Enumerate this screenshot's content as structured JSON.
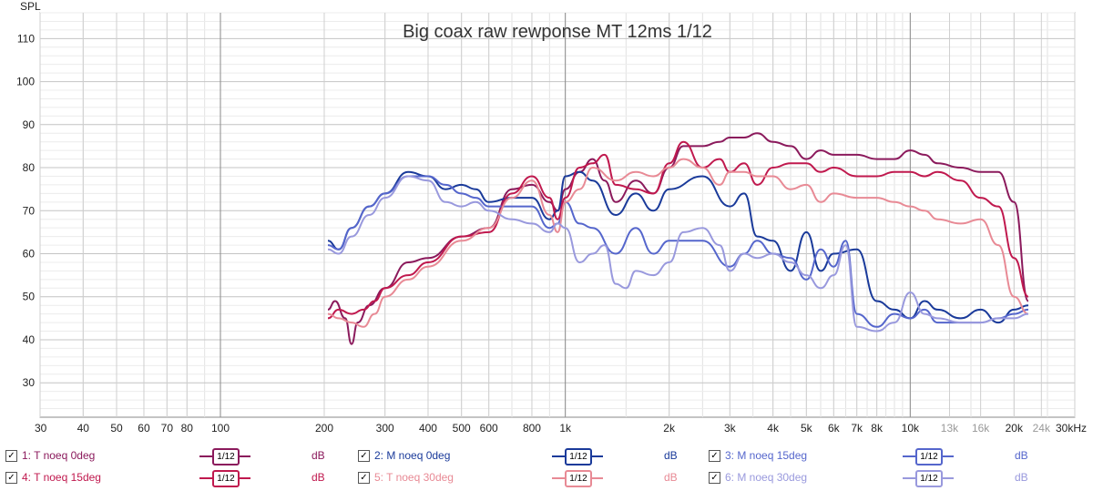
{
  "chart_data": {
    "type": "line",
    "title": "Big coax raw rewponse MT 12ms 1/12",
    "ylabel": "SPL",
    "xlabel": "",
    "x_scale": "log",
    "xlim": [
      30,
      30000
    ],
    "ylim": [
      22,
      116
    ],
    "y_ticks": [
      30,
      40,
      50,
      60,
      70,
      80,
      90,
      100,
      110
    ],
    "x_ticks": [
      {
        "v": 30,
        "label": "30",
        "minor": false
      },
      {
        "v": 40,
        "label": "40",
        "minor": false
      },
      {
        "v": 50,
        "label": "50",
        "minor": false
      },
      {
        "v": 60,
        "label": "60",
        "minor": false
      },
      {
        "v": 70,
        "label": "70",
        "minor": false
      },
      {
        "v": 80,
        "label": "80",
        "minor": false
      },
      {
        "v": 100,
        "label": "100",
        "minor": false
      },
      {
        "v": 200,
        "label": "200",
        "minor": false
      },
      {
        "v": 300,
        "label": "300",
        "minor": false
      },
      {
        "v": 400,
        "label": "400",
        "minor": false
      },
      {
        "v": 500,
        "label": "500",
        "minor": false
      },
      {
        "v": 600,
        "label": "600",
        "minor": false
      },
      {
        "v": 800,
        "label": "800",
        "minor": false
      },
      {
        "v": 1000,
        "label": "1k",
        "minor": false
      },
      {
        "v": 2000,
        "label": "2k",
        "minor": false
      },
      {
        "v": 3000,
        "label": "3k",
        "minor": false
      },
      {
        "v": 4000,
        "label": "4k",
        "minor": false
      },
      {
        "v": 5000,
        "label": "5k",
        "minor": false
      },
      {
        "v": 6000,
        "label": "6k",
        "minor": false
      },
      {
        "v": 7000,
        "label": "7k",
        "minor": false
      },
      {
        "v": 8000,
        "label": "8k",
        "minor": false
      },
      {
        "v": 10000,
        "label": "10k",
        "minor": false
      },
      {
        "v": 13000,
        "label": "13k",
        "minor": true
      },
      {
        "v": 16000,
        "label": "16k",
        "minor": true
      },
      {
        "v": 20000,
        "label": "20k",
        "minor": false
      },
      {
        "v": 24000,
        "label": "24k",
        "minor": true
      },
      {
        "v": 30000,
        "label": "30kHz",
        "minor": false
      }
    ],
    "grid": true,
    "series": [
      {
        "name": "1: T noeq 0deg",
        "color": "#8b1a5c",
        "x": [
          205,
          215,
          230,
          240,
          250,
          270,
          300,
          350,
          400,
          500,
          600,
          700,
          800,
          900,
          950,
          1000,
          1100,
          1200,
          1300,
          1400,
          1600,
          1800,
          2000,
          2200,
          2500,
          2800,
          3000,
          3300,
          3600,
          4000,
          4500,
          5000,
          5500,
          6000,
          7000,
          8000,
          9000,
          10000,
          11000,
          12000,
          14000,
          16000,
          18000,
          20000,
          22000
        ],
        "y": [
          47,
          49,
          45,
          39,
          44,
          48,
          52,
          58,
          59,
          64,
          66,
          75,
          76,
          72,
          70,
          75,
          79,
          82,
          77,
          72,
          77,
          74,
          80,
          85,
          85,
          86,
          87,
          87,
          88,
          86,
          85,
          82,
          84,
          83,
          83,
          82,
          82,
          84,
          83,
          81,
          80,
          79,
          79,
          72,
          49
        ]
      },
      {
        "name": "2: M noeq 0deg",
        "color": "#1a3a9a",
        "x": [
          205,
          220,
          240,
          270,
          300,
          350,
          400,
          450,
          500,
          550,
          600,
          700,
          800,
          900,
          950,
          1000,
          1100,
          1200,
          1400,
          1600,
          1800,
          2000,
          2500,
          3000,
          3300,
          3600,
          4000,
          4500,
          5000,
          5500,
          6000,
          7000,
          8000,
          9000,
          10000,
          11000,
          12000,
          14000,
          16000,
          18000,
          20000,
          22000
        ],
        "y": [
          63,
          61,
          66,
          71,
          74,
          79,
          78,
          75,
          76,
          75,
          72,
          73,
          73,
          68,
          70,
          78,
          79,
          77,
          69,
          74,
          70,
          75,
          78,
          71,
          74,
          64,
          63,
          56,
          65,
          56,
          60,
          61,
          49,
          47,
          45,
          49,
          47,
          45,
          47,
          44,
          47,
          48
        ]
      },
      {
        "name": "3: M noeq 15deg",
        "color": "#5566cc",
        "x": [
          205,
          220,
          240,
          270,
          300,
          350,
          400,
          450,
          500,
          550,
          600,
          700,
          800,
          900,
          950,
          1000,
          1100,
          1200,
          1400,
          1600,
          1800,
          2000,
          2500,
          3000,
          3300,
          3600,
          4000,
          4500,
          5000,
          5500,
          6000,
          6500,
          7000,
          8000,
          9000,
          10000,
          11000,
          12000,
          14000,
          16000,
          18000,
          20000,
          22000
        ],
        "y": [
          62,
          61,
          66,
          71,
          74,
          78,
          78,
          76,
          74,
          73,
          71,
          71,
          71,
          66,
          67,
          72,
          67,
          66,
          60,
          66,
          60,
          63,
          63,
          57,
          60,
          63,
          60,
          59,
          54,
          61,
          57,
          63,
          46,
          43,
          46,
          45,
          47,
          44,
          44,
          44,
          45,
          46,
          47
        ]
      },
      {
        "name": "4: T noeq 15deg",
        "color": "#c0194e",
        "x": [
          205,
          220,
          240,
          260,
          280,
          300,
          350,
          400,
          500,
          600,
          700,
          800,
          900,
          950,
          1000,
          1100,
          1200,
          1300,
          1400,
          1600,
          1800,
          2000,
          2200,
          2500,
          2800,
          3000,
          3300,
          3600,
          4000,
          4500,
          5000,
          5500,
          6000,
          7000,
          8000,
          9000,
          10000,
          11000,
          12000,
          14000,
          16000,
          18000,
          20000,
          22000
        ],
        "y": [
          45,
          47,
          46,
          47,
          49,
          52,
          55,
          58,
          64,
          65,
          74,
          78,
          73,
          68,
          73,
          80,
          81,
          83,
          76,
          75,
          74,
          81,
          86,
          80,
          82,
          79,
          81,
          76,
          80,
          81,
          81,
          79,
          80,
          78,
          78,
          79,
          79,
          78,
          79,
          77,
          73,
          71,
          59,
          50
        ]
      },
      {
        "name": "5: T noeq 30deg",
        "color": "#e88a95",
        "x": [
          205,
          220,
          240,
          260,
          280,
          300,
          350,
          400,
          500,
          600,
          700,
          800,
          900,
          950,
          1000,
          1100,
          1200,
          1400,
          1600,
          1800,
          2000,
          2200,
          2500,
          2800,
          3000,
          3300,
          3600,
          4000,
          4500,
          5000,
          5500,
          6000,
          7000,
          8000,
          9000,
          10000,
          11000,
          12000,
          14000,
          16000,
          18000,
          20000,
          22000
        ],
        "y": [
          46,
          45,
          44,
          43,
          46,
          50,
          54,
          57,
          63,
          66,
          73,
          77,
          69,
          65,
          72,
          75,
          80,
          77,
          79,
          78,
          80,
          82,
          80,
          76,
          79,
          79,
          78,
          78,
          75,
          76,
          72,
          74,
          73,
          73,
          72,
          71,
          70,
          68,
          67,
          68,
          62,
          50,
          46
        ]
      },
      {
        "name": "6: M noeq 30deg",
        "color": "#9999dd",
        "x": [
          205,
          220,
          240,
          270,
          300,
          350,
          400,
          450,
          500,
          550,
          600,
          700,
          800,
          900,
          950,
          1000,
          1100,
          1200,
          1300,
          1400,
          1500,
          1600,
          1800,
          2000,
          2200,
          2500,
          2800,
          3000,
          3300,
          3600,
          4000,
          4500,
          5000,
          5500,
          6000,
          6500,
          7000,
          8000,
          9000,
          10000,
          11000,
          12000,
          14000,
          16000,
          18000,
          20000,
          22000
        ],
        "y": [
          61,
          60,
          64,
          69,
          73,
          78,
          77,
          72,
          71,
          72,
          70,
          68,
          67,
          65,
          67,
          66,
          58,
          60,
          62,
          53,
          52,
          56,
          55,
          58,
          65,
          66,
          62,
          56,
          60,
          59,
          60,
          58,
          55,
          52,
          55,
          62,
          43,
          42,
          44,
          51,
          46,
          45,
          44,
          44,
          45,
          45,
          46
        ]
      }
    ]
  },
  "legend": [
    {
      "check": "✓",
      "label": "1: T noeq 0deg",
      "smooth": "1/12",
      "unit": "dB",
      "color": "#8b1a5c"
    },
    {
      "check": "✓",
      "label": "2: M noeq 0deg",
      "smooth": "1/12",
      "unit": "dB",
      "color": "#1a3a9a"
    },
    {
      "check": "✓",
      "label": "3: M noeq 15deg",
      "smooth": "1/12",
      "unit": "dB",
      "color": "#5566cc"
    },
    {
      "check": "✓",
      "label": "4: T noeq 15deg",
      "smooth": "1/12",
      "unit": "dB",
      "color": "#c0194e"
    },
    {
      "check": "✓",
      "label": "5: T noeq 30deg",
      "smooth": "1/12",
      "unit": "dB",
      "color": "#e88a95"
    },
    {
      "check": "✓",
      "label": "6: M noeq 30deg",
      "smooth": "1/12",
      "unit": "dB",
      "color": "#9999dd"
    }
  ]
}
